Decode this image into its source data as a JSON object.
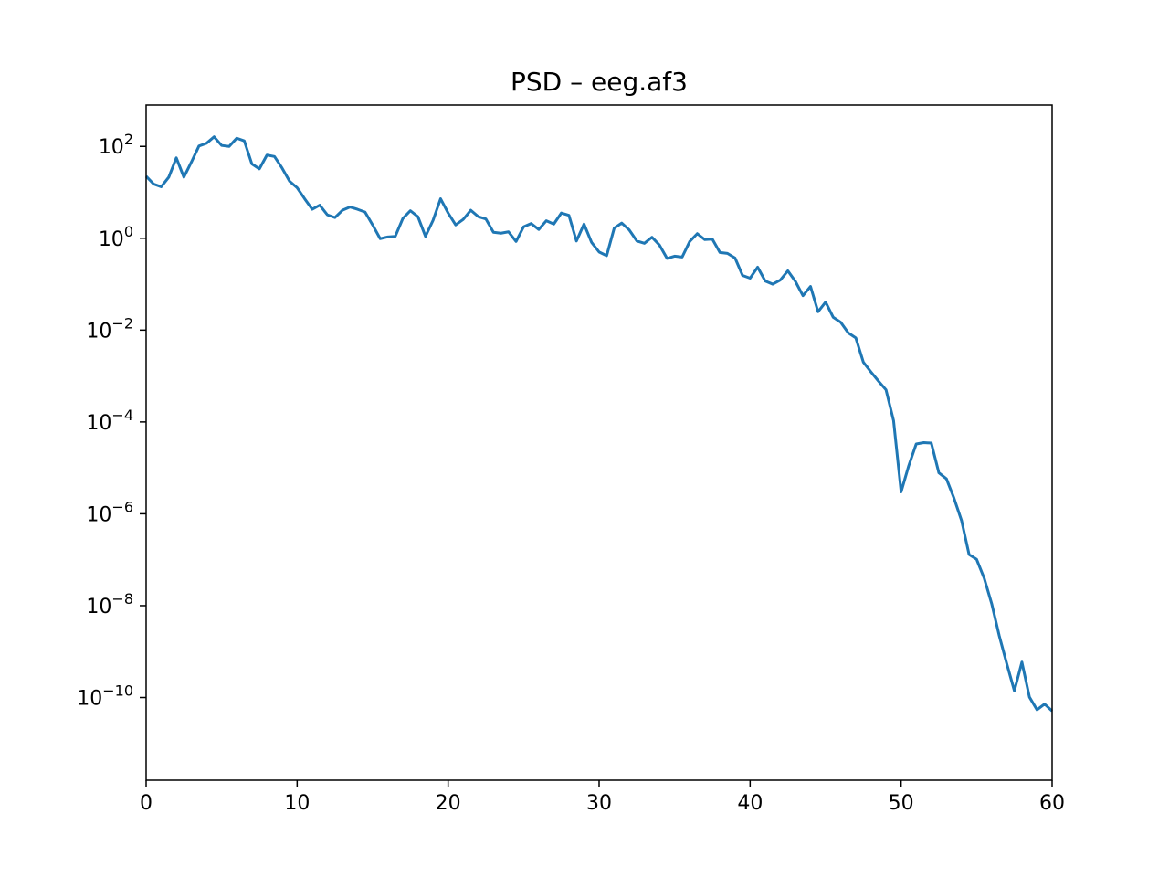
{
  "chart_data": {
    "type": "line",
    "title": "PSD – eeg.af3",
    "xlabel": "",
    "ylabel": "",
    "xlim": [
      0,
      60
    ],
    "ylim_log10": [
      -11.8,
      2.9
    ],
    "yscale": "log",
    "grid": false,
    "color": "#1f77b4",
    "x_ticks": [
      0,
      10,
      20,
      30,
      40,
      50,
      60
    ],
    "y_ticks": [
      {
        "exp": 2,
        "base": "10",
        "sup": "2"
      },
      {
        "exp": 0,
        "base": "10",
        "sup": "0"
      },
      {
        "exp": -2,
        "base": "10",
        "sup": "−2"
      },
      {
        "exp": -4,
        "base": "10",
        "sup": "−4"
      },
      {
        "exp": -6,
        "base": "10",
        "sup": "−6"
      },
      {
        "exp": -8,
        "base": "10",
        "sup": "−8"
      },
      {
        "exp": -10,
        "base": "10",
        "sup": "−10"
      }
    ],
    "series": [
      {
        "x": [
          0,
          0.5,
          1,
          1.5,
          2,
          2.5,
          3,
          3.5,
          4,
          4.5,
          5,
          5.5,
          6,
          6.5,
          7,
          7.5,
          8,
          8.5,
          9,
          9.5,
          10,
          10.5,
          11,
          11.5,
          12,
          12.5,
          13,
          13.5,
          14,
          14.5,
          15,
          15.5,
          16,
          16.5,
          17,
          17.5,
          18,
          18.5,
          19,
          19.5,
          20,
          20.5,
          21,
          21.5,
          22,
          22.5,
          23,
          23.5,
          24,
          24.5,
          25,
          25.5,
          26,
          26.5,
          27,
          27.5,
          28,
          28.5,
          29,
          29.5,
          30,
          30.5,
          31,
          31.5,
          32,
          32.5,
          33,
          33.5,
          34,
          34.5,
          35,
          35.5,
          36,
          36.5,
          37,
          37.5,
          38,
          38.5,
          39,
          39.5,
          40,
          40.5,
          41,
          41.5,
          42,
          42.5,
          43,
          43.5,
          44,
          44.5,
          45,
          45.5,
          46,
          46.5,
          47,
          47.5,
          48,
          48.5,
          49,
          49.5,
          50,
          50.5,
          51,
          51.5,
          52,
          52.5,
          53,
          53.5,
          54,
          54.5,
          55,
          55.5,
          56,
          56.5,
          57,
          57.5,
          58,
          58.5,
          59,
          59.5,
          60
        ],
        "y": [
          22.4,
          15.1,
          13.2,
          21.4,
          56.2,
          21.4,
          45.7,
          102,
          117,
          162,
          105,
          100,
          151,
          132,
          41.7,
          32.4,
          64.6,
          60.3,
          33.9,
          17.4,
          12.6,
          7.24,
          4.27,
          5.25,
          3.24,
          2.82,
          4.07,
          4.79,
          4.27,
          3.72,
          1.95,
          0.98,
          1.07,
          1.1,
          2.69,
          3.98,
          2.95,
          1.1,
          2.45,
          7.24,
          3.55,
          1.95,
          2.57,
          4.07,
          2.95,
          2.63,
          1.35,
          1.29,
          1.38,
          0.851,
          1.78,
          2.09,
          1.55,
          2.4,
          2.04,
          3.55,
          3.16,
          0.871,
          2.04,
          0.813,
          0.501,
          0.417,
          1.66,
          2.14,
          1.51,
          0.871,
          0.776,
          1.05,
          0.708,
          0.363,
          0.407,
          0.389,
          0.851,
          1.26,
          0.933,
          0.955,
          0.49,
          0.468,
          0.372,
          0.155,
          0.135,
          0.234,
          0.117,
          0.1,
          0.123,
          0.195,
          0.115,
          0.0562,
          0.0891,
          0.0251,
          0.0407,
          0.0191,
          0.0148,
          0.00871,
          0.00676,
          0.002,
          0.00123,
          0.000776,
          0.000501,
          0.000107,
          3e-06,
          1.1e-05,
          3.31e-05,
          3.55e-05,
          3.47e-05,
          7.8e-06,
          5.8e-06,
          2.2e-06,
          7.2e-07,
          1.3e-07,
          1.02e-07,
          3.98e-08,
          1.1e-08,
          2.2e-09,
          5.4e-10,
          1.4e-10,
          5.9e-10,
          1.02e-10,
          5.4e-11,
          7.2e-11,
          5.1e-11
        ]
      }
    ]
  }
}
